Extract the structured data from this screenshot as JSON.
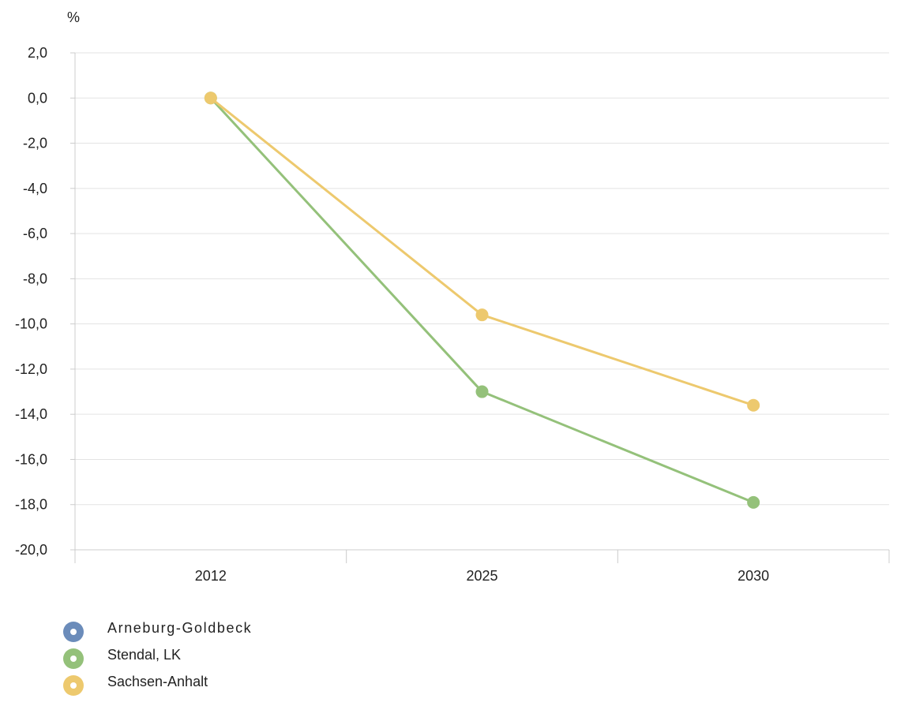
{
  "chart_data": {
    "type": "line",
    "ylabel": "%",
    "xlabel": "",
    "categories": [
      "2012",
      "2025",
      "2030"
    ],
    "ylim": [
      -20,
      2
    ],
    "yticks": [
      2,
      0,
      -2,
      -4,
      -6,
      -8,
      -10,
      -12,
      -14,
      -16,
      -18,
      -20
    ],
    "ytick_labels": [
      "2,0",
      "0,0",
      "-2,0",
      "-4,0",
      "-6,0",
      "-8,0",
      "-10,0",
      "-12,0",
      "-14,0",
      "-16,0",
      "-18,0",
      "-20,0"
    ],
    "grid": "horizontal",
    "legend_placement": "bottom-left",
    "series": [
      {
        "name": "Arneburg-Goldbeck",
        "color": "#6b8cba",
        "values": [
          null,
          null,
          null
        ]
      },
      {
        "name": "Stendal, LK",
        "color": "#94c17a",
        "values": [
          0.0,
          -13.0,
          -17.9
        ]
      },
      {
        "name": "Sachsen-Anhalt",
        "color": "#edc96e",
        "values": [
          0.0,
          -9.6,
          -13.6
        ]
      }
    ]
  }
}
